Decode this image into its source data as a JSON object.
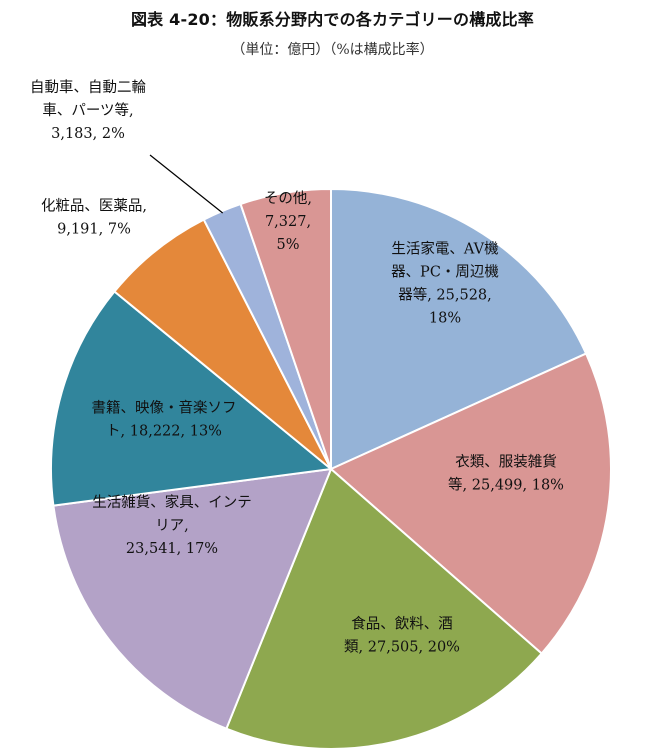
{
  "chart_data": {
    "type": "pie",
    "title": "図表 4-20：物販系分野内での各カテゴリーの構成比率",
    "subtitle": "（単位：億円）（%は構成比率）",
    "legend": "none",
    "slices": [
      {
        "name": "生活家電、AV機器、PC・周辺機器等",
        "value": 25528,
        "percent": 18,
        "color": "#95b3d7",
        "label_lines": [
          "生活家電、AV機",
          "器、PC・周辺機",
          "器等, 25,528,",
          "18%"
        ]
      },
      {
        "name": "衣類、服装雑貨等",
        "value": 25499,
        "percent": 18,
        "color": "#d99694",
        "label_lines": [
          "衣類、服装雑貨",
          "等, 25,499, 18%"
        ]
      },
      {
        "name": "食品、飲料、酒類",
        "value": 27505,
        "percent": 20,
        "color": "#8ea84f",
        "label_lines": [
          "食品、飲料、酒",
          "類, 27,505, 20%"
        ]
      },
      {
        "name": "生活雑貨、家具、インテリア",
        "value": 23541,
        "percent": 17,
        "color": "#b3a2c7",
        "label_lines": [
          "生活雑貨、家具、インテ",
          "リア,",
          "23,541, 17%"
        ]
      },
      {
        "name": "書籍、映像・音楽ソフト",
        "value": 18222,
        "percent": 13,
        "color": "#31859c",
        "label_lines": [
          "書籍、映像・音楽ソフ",
          "ト, 18,222, 13%"
        ]
      },
      {
        "name": "化粧品、医薬品",
        "value": 9191,
        "percent": 7,
        "color": "#e4883a",
        "label_lines": [
          "化粧品、医薬品,",
          "9,191, 7%"
        ]
      },
      {
        "name": "自動車、自動二輪車、パーツ等",
        "value": 3183,
        "percent": 2,
        "color": "#9fb3db",
        "label_lines": [
          "自動車、自動二輪",
          "車、パーツ等,",
          "3,183, 2%"
        ]
      },
      {
        "name": "その他",
        "value": 7327,
        "percent": 5,
        "color": "#d99694",
        "label_lines": [
          "その他,",
          "7,327,",
          "5%"
        ]
      }
    ]
  }
}
